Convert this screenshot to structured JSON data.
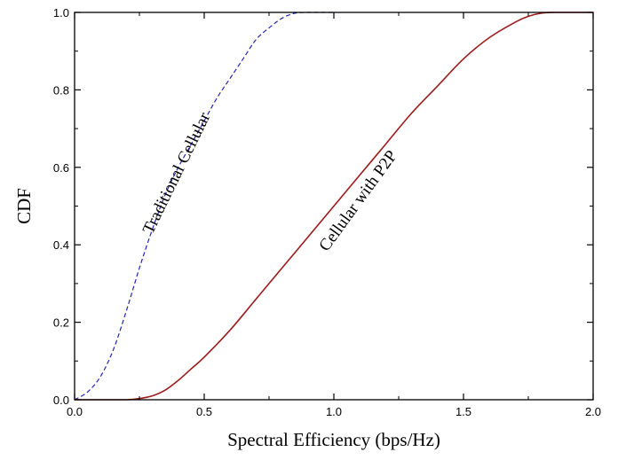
{
  "chart_data": {
    "type": "line",
    "xlabel": "Spectral Efficiency (bps/Hz)",
    "ylabel": "CDF",
    "xlim": [
      0.0,
      2.0
    ],
    "ylim": [
      0.0,
      1.0
    ],
    "x_ticks": [
      "0.0",
      "0.5",
      "1.0",
      "1.5",
      "2.0"
    ],
    "y_ticks": [
      "0.0",
      "0.2",
      "0.4",
      "0.6",
      "0.8",
      "1.0"
    ],
    "grid": false,
    "legend": "none",
    "series": [
      {
        "name": "Traditional Cellular",
        "color": "#2323b4",
        "style": "dashed",
        "x": [
          0.0,
          0.05,
          0.1,
          0.15,
          0.2,
          0.25,
          0.3,
          0.35,
          0.4,
          0.45,
          0.5,
          0.55,
          0.6,
          0.65,
          0.7,
          0.75,
          0.8,
          0.85,
          0.9,
          0.95,
          1.0
        ],
        "values": [
          0.0,
          0.02,
          0.06,
          0.13,
          0.23,
          0.34,
          0.44,
          0.53,
          0.6,
          0.66,
          0.72,
          0.78,
          0.83,
          0.88,
          0.93,
          0.96,
          0.985,
          0.998,
          1.0,
          1.0,
          1.0
        ]
      },
      {
        "name": "Cellular with P2P",
        "color": "#9b1b1b",
        "style": "solid",
        "x": [
          0.0,
          0.1,
          0.2,
          0.25,
          0.3,
          0.35,
          0.4,
          0.45,
          0.5,
          0.6,
          0.7,
          0.8,
          0.9,
          1.0,
          1.1,
          1.2,
          1.3,
          1.4,
          1.5,
          1.6,
          1.7,
          1.75,
          1.8,
          1.85,
          1.9,
          2.0
        ],
        "values": [
          0.0,
          0.0,
          0.0,
          0.003,
          0.01,
          0.025,
          0.05,
          0.08,
          0.11,
          0.18,
          0.26,
          0.34,
          0.42,
          0.5,
          0.58,
          0.66,
          0.74,
          0.81,
          0.88,
          0.935,
          0.975,
          0.99,
          0.998,
          1.0,
          1.0,
          1.0
        ]
      }
    ],
    "annotations": [
      "Traditional Cellular",
      "Cellular with P2P"
    ]
  }
}
